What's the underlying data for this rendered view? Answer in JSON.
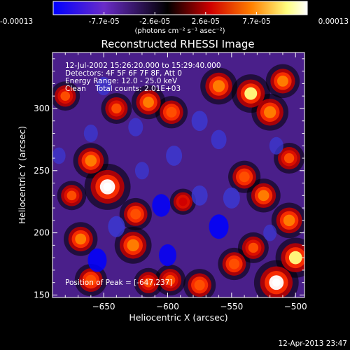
{
  "colorbar": {
    "tick_labels": [
      "-0.00013",
      "-7.7e-05",
      "-2.6e-05",
      "2.6e-05",
      "7.7e-05",
      "0.00013"
    ],
    "unit_label": "(photons cm⁻² s⁻¹ asec⁻²)",
    "range": [
      -0.00013,
      0.00013
    ]
  },
  "chart_data": {
    "type": "heatmap",
    "title": "Reconstructed RHESSI Image",
    "xlabel": "Heliocentric X (arcsec)",
    "ylabel": "Heliocentric Y (arcsec)",
    "xlim": [
      -690,
      -493
    ],
    "ylim": [
      148,
      345
    ],
    "x_ticks": [
      -650,
      -600,
      -550,
      -500
    ],
    "y_ticks": [
      150,
      200,
      250,
      300
    ],
    "x_tick_labels": [
      "−650",
      "−600",
      "−550",
      "−500"
    ],
    "y_tick_labels": [
      "150",
      "200",
      "250",
      "300"
    ],
    "annotations": [
      "12-Jul-2002 15:26:20.000 to 15:29:40.000",
      "Detectors: 4F 5F 6F 7F 8F, Att 0",
      "Energy Range: 12.0 - 25.0 keV",
      "Clean    Total counts: 2.01E+03"
    ],
    "peak_label": "Position of Peak = [-647,237]",
    "peak": [
      -647,
      237
    ],
    "colormap": [
      "#0000ff",
      "#6a2cc8",
      "#000000",
      "#d00000",
      "#ff8000",
      "#ffff80",
      "#ffffff"
    ],
    "blobs": [
      {
        "x": -647,
        "y": 237,
        "value": 1.0
      },
      {
        "x": -515,
        "y": 160,
        "value": 0.95
      },
      {
        "x": -660,
        "y": 258,
        "value": 0.65
      },
      {
        "x": -627,
        "y": 190,
        "value": 0.7
      },
      {
        "x": -625,
        "y": 215,
        "value": 0.55
      },
      {
        "x": -668,
        "y": 195,
        "value": 0.6
      },
      {
        "x": -660,
        "y": 162,
        "value": 0.55
      },
      {
        "x": -640,
        "y": 300,
        "value": 0.5
      },
      {
        "x": -615,
        "y": 305,
        "value": 0.6
      },
      {
        "x": -597,
        "y": 297,
        "value": 0.55
      },
      {
        "x": -560,
        "y": 318,
        "value": 0.7
      },
      {
        "x": -535,
        "y": 312,
        "value": 0.75
      },
      {
        "x": -520,
        "y": 297,
        "value": 0.7
      },
      {
        "x": -510,
        "y": 322,
        "value": 0.6
      },
      {
        "x": -540,
        "y": 245,
        "value": 0.55
      },
      {
        "x": -525,
        "y": 230,
        "value": 0.6
      },
      {
        "x": -548,
        "y": 175,
        "value": 0.55
      },
      {
        "x": -533,
        "y": 188,
        "value": 0.5
      },
      {
        "x": -500,
        "y": 180,
        "value": 0.8
      },
      {
        "x": -575,
        "y": 158,
        "value": 0.55
      },
      {
        "x": -598,
        "y": 162,
        "value": 0.5
      },
      {
        "x": -615,
        "y": 160,
        "value": 0.45
      },
      {
        "x": -505,
        "y": 210,
        "value": 0.65
      },
      {
        "x": -505,
        "y": 260,
        "value": 0.5
      },
      {
        "x": -680,
        "y": 310,
        "value": 0.45
      },
      {
        "x": -675,
        "y": 230,
        "value": 0.45
      },
      {
        "x": -588,
        "y": 225,
        "value": 0.35
      },
      {
        "x": -595,
        "y": 262,
        "value": -0.55
      },
      {
        "x": -560,
        "y": 205,
        "value": -0.8
      },
      {
        "x": -605,
        "y": 222,
        "value": -0.7
      },
      {
        "x": -550,
        "y": 228,
        "value": -0.6
      },
      {
        "x": -575,
        "y": 230,
        "value": -0.55
      },
      {
        "x": -655,
        "y": 178,
        "value": -0.75
      },
      {
        "x": -640,
        "y": 205,
        "value": -0.6
      },
      {
        "x": -600,
        "y": 182,
        "value": -0.65
      },
      {
        "x": -575,
        "y": 290,
        "value": -0.55
      },
      {
        "x": -560,
        "y": 275,
        "value": -0.5
      },
      {
        "x": -625,
        "y": 285,
        "value": -0.45
      },
      {
        "x": -650,
        "y": 318,
        "value": -0.45
      },
      {
        "x": -515,
        "y": 270,
        "value": -0.4
      },
      {
        "x": -620,
        "y": 250,
        "value": -0.4
      },
      {
        "x": -685,
        "y": 262,
        "value": -0.35
      },
      {
        "x": -520,
        "y": 200,
        "value": -0.35
      },
      {
        "x": -660,
        "y": 280,
        "value": -0.4
      }
    ]
  },
  "footer": {
    "timestamp": "12-Apr-2013 23:47"
  }
}
